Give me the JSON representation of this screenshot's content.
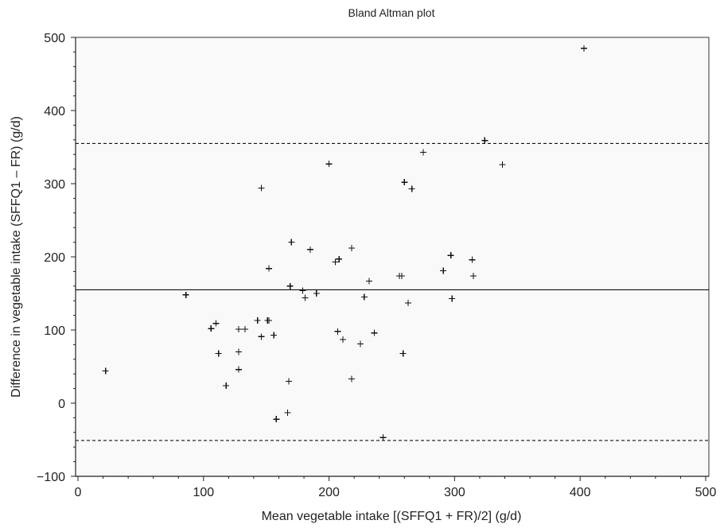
{
  "chart_data": {
    "type": "scatter",
    "title": "Bland Altman plot",
    "xlabel": "Mean vegetable intake [(SFFQ1 + FR)/2] (g/d)",
    "ylabel": "Difference in vegetable intake (SFFQ1 – FR) (g/d)",
    "xlim": [
      0,
      500
    ],
    "ylim": [
      -100,
      500
    ],
    "xticks": [
      0,
      100,
      200,
      300,
      400,
      500
    ],
    "yticks": [
      -100,
      0,
      100,
      200,
      300,
      400,
      500
    ],
    "xtick_labels": [
      "0",
      "100",
      "200",
      "300",
      "400",
      "500"
    ],
    "ytick_labels": [
      "−100",
      "0",
      "100",
      "200",
      "300",
      "400",
      "500"
    ],
    "reference_lines": {
      "mean": 155,
      "upper_limit": 355,
      "lower_limit": -51
    },
    "points": [
      {
        "x": 22,
        "y": 44
      },
      {
        "x": 86,
        "y": 148
      },
      {
        "x": 106,
        "y": 102
      },
      {
        "x": 110,
        "y": 109
      },
      {
        "x": 112,
        "y": 68
      },
      {
        "x": 118,
        "y": 24
      },
      {
        "x": 128,
        "y": 101
      },
      {
        "x": 128,
        "y": 70
      },
      {
        "x": 128,
        "y": 46
      },
      {
        "x": 133,
        "y": 101
      },
      {
        "x": 143,
        "y": 113
      },
      {
        "x": 146,
        "y": 294
      },
      {
        "x": 146,
        "y": 91
      },
      {
        "x": 151,
        "y": 113
      },
      {
        "x": 152,
        "y": 113
      },
      {
        "x": 152,
        "y": 184
      },
      {
        "x": 156,
        "y": 93
      },
      {
        "x": 158,
        "y": -22
      },
      {
        "x": 167,
        "y": -13
      },
      {
        "x": 168,
        "y": 30
      },
      {
        "x": 169,
        "y": 160
      },
      {
        "x": 170,
        "y": 220
      },
      {
        "x": 179,
        "y": 154
      },
      {
        "x": 181,
        "y": 144
      },
      {
        "x": 185,
        "y": 210
      },
      {
        "x": 190,
        "y": 150
      },
      {
        "x": 200,
        "y": 327
      },
      {
        "x": 205,
        "y": 193
      },
      {
        "x": 207,
        "y": 98
      },
      {
        "x": 208,
        "y": 197
      },
      {
        "x": 211,
        "y": 87
      },
      {
        "x": 218,
        "y": 212
      },
      {
        "x": 218,
        "y": 33
      },
      {
        "x": 225,
        "y": 81
      },
      {
        "x": 228,
        "y": 145
      },
      {
        "x": 232,
        "y": 167
      },
      {
        "x": 236,
        "y": 96
      },
      {
        "x": 243,
        "y": -47
      },
      {
        "x": 256,
        "y": 174
      },
      {
        "x": 258,
        "y": 174
      },
      {
        "x": 259,
        "y": 68
      },
      {
        "x": 260,
        "y": 302
      },
      {
        "x": 263,
        "y": 137
      },
      {
        "x": 266,
        "y": 293
      },
      {
        "x": 275,
        "y": 343
      },
      {
        "x": 291,
        "y": 181
      },
      {
        "x": 297,
        "y": 202
      },
      {
        "x": 298,
        "y": 143
      },
      {
        "x": 314,
        "y": 196
      },
      {
        "x": 315,
        "y": 174
      },
      {
        "x": 324,
        "y": 359
      },
      {
        "x": 338,
        "y": 326
      },
      {
        "x": 403,
        "y": 485
      }
    ]
  }
}
